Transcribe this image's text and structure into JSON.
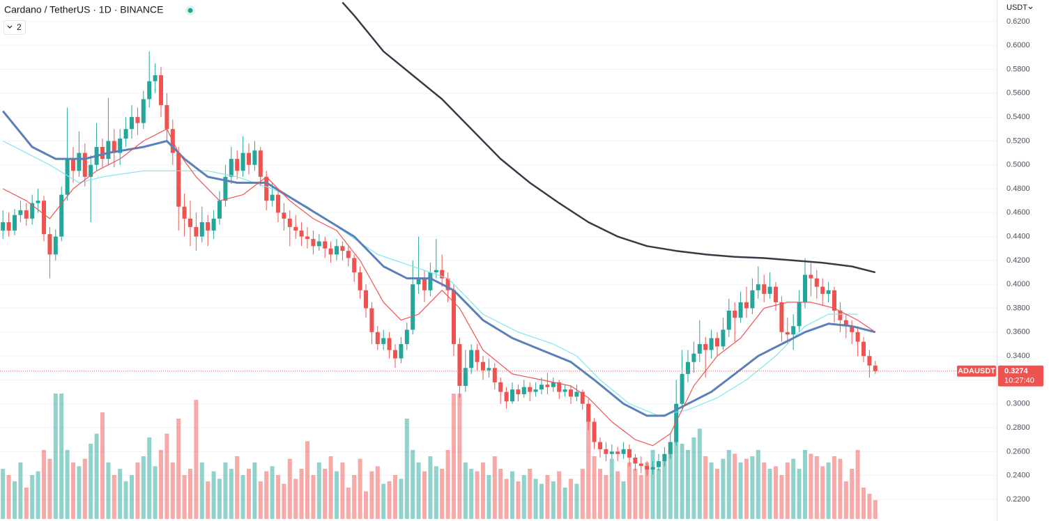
{
  "chart_data": {
    "type": "candlestick",
    "title": "Cardano / TetherUS · 1D · BINANCE",
    "indicator_count": "2",
    "currency": "USDT",
    "symbol": "ADAUSDT",
    "last_price": 0.3274,
    "countdown": "10:27:40",
    "ylim": [
      0.2019,
      0.638
    ],
    "yticks": [
      {
        "value": 0.22,
        "label": "0.2200"
      },
      {
        "value": 0.24,
        "label": "0.2400"
      },
      {
        "value": 0.26,
        "label": "0.2600"
      },
      {
        "value": 0.28,
        "label": "0.2800"
      },
      {
        "value": 0.3,
        "label": "0.3000"
      },
      {
        "value": 0.32,
        "label": "0.3200"
      },
      {
        "value": 0.34,
        "label": "0.3400"
      },
      {
        "value": 0.36,
        "label": "0.3600"
      },
      {
        "value": 0.38,
        "label": "0.3800"
      },
      {
        "value": 0.4,
        "label": "0.4000"
      },
      {
        "value": 0.42,
        "label": "0.4200"
      },
      {
        "value": 0.44,
        "label": "0.4400"
      },
      {
        "value": 0.46,
        "label": "0.4600"
      },
      {
        "value": 0.48,
        "label": "0.4800"
      },
      {
        "value": 0.5,
        "label": "0.5000"
      },
      {
        "value": 0.52,
        "label": "0.5200"
      },
      {
        "value": 0.54,
        "label": "0.5400"
      },
      {
        "value": 0.56,
        "label": "0.5600"
      },
      {
        "value": 0.58,
        "label": "0.5800"
      },
      {
        "value": 0.6,
        "label": "0.6000"
      },
      {
        "value": 0.62,
        "label": "0.6200"
      }
    ],
    "grid": true,
    "up_color": "#26a69a",
    "down_color": "#ef5350",
    "ohlc": [
      [
        0.445,
        0.462,
        0.438,
        0.452
      ],
      [
        0.452,
        0.46,
        0.44,
        0.445
      ],
      [
        0.445,
        0.463,
        0.441,
        0.458
      ],
      [
        0.458,
        0.47,
        0.452,
        0.462
      ],
      [
        0.462,
        0.468,
        0.449,
        0.455
      ],
      [
        0.455,
        0.475,
        0.45,
        0.468
      ],
      [
        0.468,
        0.48,
        0.46,
        0.47
      ],
      [
        0.47,
        0.474,
        0.436,
        0.442
      ],
      [
        0.442,
        0.448,
        0.405,
        0.425
      ],
      [
        0.425,
        0.446,
        0.42,
        0.44
      ],
      [
        0.44,
        0.482,
        0.436,
        0.475
      ],
      [
        0.475,
        0.548,
        0.47,
        0.505
      ],
      [
        0.505,
        0.515,
        0.485,
        0.495
      ],
      [
        0.495,
        0.528,
        0.49,
        0.51
      ],
      [
        0.51,
        0.518,
        0.482,
        0.49
      ],
      [
        0.49,
        0.508,
        0.452,
        0.5
      ],
      [
        0.5,
        0.535,
        0.495,
        0.515
      ],
      [
        0.515,
        0.522,
        0.498,
        0.505
      ],
      [
        0.505,
        0.556,
        0.5,
        0.52
      ],
      [
        0.52,
        0.53,
        0.498,
        0.51
      ],
      [
        0.51,
        0.53,
        0.5,
        0.522
      ],
      [
        0.522,
        0.54,
        0.515,
        0.53
      ],
      [
        0.53,
        0.55,
        0.522,
        0.54
      ],
      [
        0.54,
        0.548,
        0.525,
        0.535
      ],
      [
        0.535,
        0.562,
        0.53,
        0.555
      ],
      [
        0.555,
        0.595,
        0.548,
        0.57
      ],
      [
        0.57,
        0.585,
        0.56,
        0.575
      ],
      [
        0.575,
        0.582,
        0.54,
        0.55
      ],
      [
        0.55,
        0.56,
        0.52,
        0.53
      ],
      [
        0.53,
        0.538,
        0.5,
        0.51
      ],
      [
        0.51,
        0.515,
        0.445,
        0.465
      ],
      [
        0.465,
        0.476,
        0.44,
        0.455
      ],
      [
        0.455,
        0.47,
        0.432,
        0.448
      ],
      [
        0.448,
        0.46,
        0.428,
        0.44
      ],
      [
        0.44,
        0.465,
        0.435,
        0.452
      ],
      [
        0.452,
        0.458,
        0.432,
        0.445
      ],
      [
        0.445,
        0.462,
        0.438,
        0.455
      ],
      [
        0.455,
        0.478,
        0.45,
        0.47
      ],
      [
        0.47,
        0.5,
        0.465,
        0.49
      ],
      [
        0.49,
        0.515,
        0.484,
        0.505
      ],
      [
        0.505,
        0.512,
        0.488,
        0.495
      ],
      [
        0.495,
        0.524,
        0.49,
        0.51
      ],
      [
        0.51,
        0.518,
        0.492,
        0.5
      ],
      [
        0.5,
        0.52,
        0.495,
        0.512
      ],
      [
        0.512,
        0.515,
        0.482,
        0.49
      ],
      [
        0.49,
        0.495,
        0.462,
        0.47
      ],
      [
        0.47,
        0.485,
        0.465,
        0.475
      ],
      [
        0.475,
        0.48,
        0.452,
        0.46
      ],
      [
        0.46,
        0.468,
        0.445,
        0.455
      ],
      [
        0.455,
        0.462,
        0.432,
        0.448
      ],
      [
        0.448,
        0.458,
        0.438,
        0.445
      ],
      [
        0.445,
        0.452,
        0.432,
        0.44
      ],
      [
        0.44,
        0.448,
        0.43,
        0.438
      ],
      [
        0.438,
        0.445,
        0.425,
        0.432
      ],
      [
        0.432,
        0.442,
        0.428,
        0.436
      ],
      [
        0.436,
        0.44,
        0.422,
        0.43
      ],
      [
        0.43,
        0.436,
        0.418,
        0.425
      ],
      [
        0.425,
        0.438,
        0.42,
        0.432
      ],
      [
        0.432,
        0.436,
        0.42,
        0.428
      ],
      [
        0.428,
        0.432,
        0.415,
        0.422
      ],
      [
        0.422,
        0.425,
        0.402,
        0.41
      ],
      [
        0.41,
        0.415,
        0.388,
        0.395
      ],
      [
        0.395,
        0.4,
        0.372,
        0.38
      ],
      [
        0.38,
        0.385,
        0.35,
        0.36
      ],
      [
        0.36,
        0.365,
        0.345,
        0.35
      ],
      [
        0.35,
        0.362,
        0.345,
        0.355
      ],
      [
        0.355,
        0.36,
        0.338,
        0.345
      ],
      [
        0.345,
        0.35,
        0.33,
        0.338
      ],
      [
        0.338,
        0.356,
        0.334,
        0.35
      ],
      [
        0.35,
        0.368,
        0.345,
        0.362
      ],
      [
        0.362,
        0.42,
        0.358,
        0.4
      ],
      [
        0.4,
        0.44,
        0.392,
        0.405
      ],
      [
        0.405,
        0.412,
        0.385,
        0.395
      ],
      [
        0.395,
        0.418,
        0.39,
        0.41
      ],
      [
        0.41,
        0.438,
        0.405,
        0.412
      ],
      [
        0.412,
        0.425,
        0.398,
        0.405
      ],
      [
        0.405,
        0.41,
        0.385,
        0.395
      ],
      [
        0.395,
        0.4,
        0.34,
        0.35
      ],
      [
        0.35,
        0.355,
        0.305,
        0.315
      ],
      [
        0.315,
        0.345,
        0.31,
        0.33
      ],
      [
        0.33,
        0.35,
        0.325,
        0.345
      ],
      [
        0.345,
        0.35,
        0.328,
        0.335
      ],
      [
        0.335,
        0.34,
        0.32,
        0.328
      ],
      [
        0.328,
        0.338,
        0.322,
        0.33
      ],
      [
        0.33,
        0.334,
        0.312,
        0.318
      ],
      [
        0.318,
        0.322,
        0.3,
        0.31
      ],
      [
        0.31,
        0.314,
        0.296,
        0.302
      ],
      [
        0.302,
        0.318,
        0.3,
        0.312
      ],
      [
        0.312,
        0.316,
        0.302,
        0.308
      ],
      [
        0.308,
        0.32,
        0.305,
        0.314
      ],
      [
        0.314,
        0.318,
        0.302,
        0.31
      ],
      [
        0.31,
        0.318,
        0.306,
        0.312
      ],
      [
        0.312,
        0.322,
        0.308,
        0.316
      ],
      [
        0.316,
        0.326,
        0.308,
        0.314
      ],
      [
        0.314,
        0.322,
        0.31,
        0.318
      ],
      [
        0.318,
        0.32,
        0.304,
        0.31
      ],
      [
        0.31,
        0.316,
        0.306,
        0.312
      ],
      [
        0.312,
        0.315,
        0.3,
        0.306
      ],
      [
        0.306,
        0.316,
        0.302,
        0.31
      ],
      [
        0.31,
        0.312,
        0.295,
        0.3
      ],
      [
        0.3,
        0.304,
        0.278,
        0.285
      ],
      [
        0.285,
        0.288,
        0.262,
        0.268
      ],
      [
        0.268,
        0.272,
        0.255,
        0.262
      ],
      [
        0.262,
        0.268,
        0.252,
        0.258
      ],
      [
        0.258,
        0.266,
        0.254,
        0.26
      ],
      [
        0.26,
        0.264,
        0.252,
        0.258
      ],
      [
        0.258,
        0.268,
        0.254,
        0.262
      ],
      [
        0.262,
        0.266,
        0.248,
        0.255
      ],
      [
        0.255,
        0.258,
        0.244,
        0.25
      ],
      [
        0.25,
        0.256,
        0.242,
        0.248
      ],
      [
        0.248,
        0.252,
        0.24,
        0.245
      ],
      [
        0.245,
        0.252,
        0.241,
        0.247
      ],
      [
        0.247,
        0.258,
        0.244,
        0.252
      ],
      [
        0.252,
        0.264,
        0.248,
        0.258
      ],
      [
        0.258,
        0.275,
        0.254,
        0.268
      ],
      [
        0.268,
        0.32,
        0.265,
        0.3
      ],
      [
        0.3,
        0.345,
        0.296,
        0.325
      ],
      [
        0.325,
        0.345,
        0.318,
        0.335
      ],
      [
        0.335,
        0.352,
        0.326,
        0.342
      ],
      [
        0.342,
        0.37,
        0.335,
        0.35
      ],
      [
        0.35,
        0.356,
        0.322,
        0.345
      ],
      [
        0.345,
        0.362,
        0.338,
        0.355
      ],
      [
        0.355,
        0.36,
        0.34,
        0.348
      ],
      [
        0.348,
        0.372,
        0.345,
        0.362
      ],
      [
        0.362,
        0.388,
        0.356,
        0.378
      ],
      [
        0.378,
        0.385,
        0.352,
        0.372
      ],
      [
        0.372,
        0.394,
        0.368,
        0.385
      ],
      [
        0.385,
        0.398,
        0.372,
        0.38
      ],
      [
        0.38,
        0.405,
        0.375,
        0.395
      ],
      [
        0.395,
        0.415,
        0.388,
        0.4
      ],
      [
        0.4,
        0.408,
        0.385,
        0.392
      ],
      [
        0.392,
        0.41,
        0.388,
        0.398
      ],
      [
        0.398,
        0.402,
        0.378,
        0.385
      ],
      [
        0.385,
        0.39,
        0.352,
        0.36
      ],
      [
        0.36,
        0.372,
        0.35,
        0.358
      ],
      [
        0.358,
        0.375,
        0.345,
        0.365
      ],
      [
        0.365,
        0.395,
        0.36,
        0.385
      ],
      [
        0.385,
        0.422,
        0.38,
        0.408
      ],
      [
        0.408,
        0.418,
        0.39,
        0.405
      ],
      [
        0.405,
        0.412,
        0.388,
        0.398
      ],
      [
        0.398,
        0.405,
        0.382,
        0.392
      ],
      [
        0.392,
        0.402,
        0.385,
        0.395
      ],
      [
        0.395,
        0.398,
        0.368,
        0.378
      ],
      [
        0.378,
        0.385,
        0.36,
        0.37
      ],
      [
        0.37,
        0.375,
        0.355,
        0.365
      ],
      [
        0.365,
        0.37,
        0.35,
        0.36
      ],
      [
        0.36,
        0.365,
        0.34,
        0.352
      ],
      [
        0.352,
        0.356,
        0.335,
        0.34
      ],
      [
        0.34,
        0.345,
        0.322,
        0.332
      ],
      [
        0.332,
        0.336,
        0.325,
        0.3274
      ]
    ],
    "vlim": [
      0,
      100
    ],
    "volume": [
      40,
      35,
      30,
      45,
      25,
      35,
      38,
      55,
      48,
      100,
      100,
      55,
      45,
      42,
      48,
      60,
      68,
      85,
      45,
      35,
      40,
      30,
      35,
      45,
      50,
      65,
      42,
      55,
      68,
      45,
      80,
      35,
      40,
      95,
      45,
      30,
      38,
      32,
      45,
      40,
      50,
      35,
      40,
      45,
      30,
      38,
      42,
      35,
      28,
      48,
      32,
      40,
      62,
      35,
      45,
      40,
      50,
      38,
      45,
      25,
      35,
      48,
      22,
      38,
      42,
      28,
      30,
      35,
      32,
      80,
      55,
      45,
      38,
      50,
      42,
      40,
      55,
      100,
      100,
      45,
      40,
      38,
      45,
      35,
      50,
      40,
      32,
      38,
      30,
      35,
      40,
      32,
      28,
      35,
      30,
      38,
      25,
      32,
      28,
      40,
      80,
      50,
      40,
      35,
      48,
      38,
      30,
      45,
      40,
      35,
      45,
      55,
      40,
      48,
      55,
      75,
      60,
      55,
      65,
      72,
      50,
      45,
      40,
      48,
      55,
      52,
      45,
      48,
      50,
      55,
      45,
      40,
      42,
      35,
      45,
      48,
      40,
      55,
      52,
      50,
      42,
      45,
      50,
      48,
      30,
      40,
      55,
      25,
      20,
      15
    ],
    "series": [
      {
        "color": "#363a45",
        "width": 2.5,
        "x": [
          58,
          60,
          65,
          70,
          75,
          80,
          85,
          90,
          95,
          100,
          105,
          110,
          115,
          120,
          125,
          130,
          135,
          140,
          145,
          149
        ],
        "values": [
          0.636,
          0.625,
          0.595,
          0.575,
          0.555,
          0.53,
          0.505,
          0.485,
          0.468,
          0.452,
          0.44,
          0.432,
          0.428,
          0.425,
          0.423,
          0.422,
          0.42,
          0.418,
          0.415,
          0.41
        ]
      },
      {
        "color": "#7fe6f0",
        "width": 1.2,
        "x": [
          0,
          8,
          13,
          17,
          24,
          29,
          35,
          40,
          46,
          52,
          58,
          64,
          70,
          76,
          82,
          88,
          94,
          98,
          102,
          107,
          112,
          117,
          122,
          127,
          132,
          137,
          141,
          146
        ],
        "values": [
          0.52,
          0.5,
          0.485,
          0.49,
          0.495,
          0.495,
          0.495,
          0.49,
          0.48,
          0.465,
          0.445,
          0.425,
          0.415,
          0.405,
          0.375,
          0.36,
          0.35,
          0.34,
          0.32,
          0.3,
          0.29,
          0.295,
          0.305,
          0.32,
          0.34,
          0.365,
          0.375,
          0.375
        ]
      },
      {
        "color": "#5b7fb8",
        "width": 3,
        "x": [
          0,
          5,
          9,
          14,
          18,
          24,
          28,
          31,
          35,
          40,
          45,
          50,
          55,
          60,
          65,
          69,
          73,
          77,
          82,
          87,
          92,
          97,
          101,
          106,
          110,
          113,
          117,
          121,
          125,
          129,
          133,
          137,
          141,
          145,
          149
        ],
        "values": [
          0.545,
          0.515,
          0.505,
          0.505,
          0.51,
          0.515,
          0.52,
          0.505,
          0.49,
          0.485,
          0.485,
          0.47,
          0.455,
          0.44,
          0.415,
          0.405,
          0.405,
          0.395,
          0.37,
          0.355,
          0.345,
          0.335,
          0.32,
          0.3,
          0.29,
          0.29,
          0.3,
          0.31,
          0.325,
          0.34,
          0.35,
          0.36,
          0.367,
          0.365,
          0.36
        ]
      },
      {
        "color": "#ef5350",
        "width": 1.2,
        "x": [
          0,
          4,
          8,
          12,
          16,
          20,
          24,
          28,
          30,
          33,
          37,
          41,
          45,
          49,
          53,
          57,
          61,
          65,
          68,
          71,
          75,
          78,
          82,
          87,
          92,
          97,
          100,
          104,
          108,
          111,
          114,
          118,
          122,
          126,
          130,
          134,
          138,
          142,
          146,
          149
        ],
        "values": [
          0.48,
          0.47,
          0.455,
          0.48,
          0.495,
          0.505,
          0.52,
          0.53,
          0.51,
          0.49,
          0.47,
          0.475,
          0.49,
          0.47,
          0.455,
          0.445,
          0.42,
          0.385,
          0.37,
          0.375,
          0.395,
          0.38,
          0.345,
          0.325,
          0.32,
          0.315,
          0.305,
          0.285,
          0.27,
          0.265,
          0.275,
          0.315,
          0.34,
          0.355,
          0.38,
          0.385,
          0.385,
          0.38,
          0.37,
          0.36
        ]
      }
    ]
  }
}
